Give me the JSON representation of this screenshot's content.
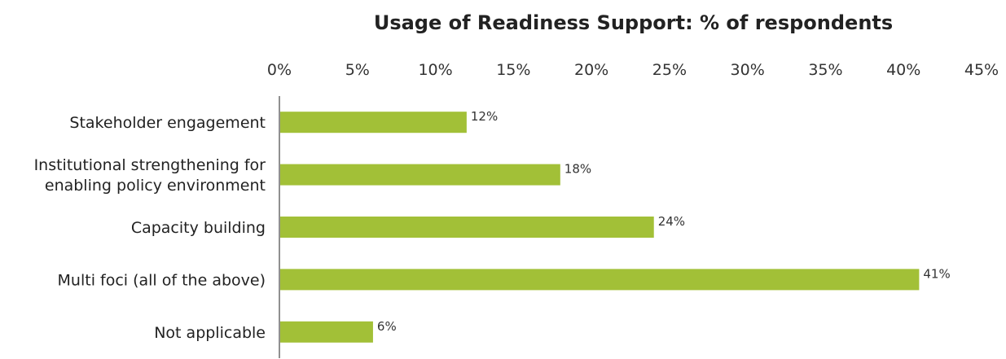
{
  "chart_data": {
    "type": "bar",
    "orientation": "horizontal",
    "title": "Usage of Readiness Support: % of respondents",
    "categories": [
      [
        "Stakeholder engagement"
      ],
      [
        "Institutional strengthening for",
        "enabling policy environment"
      ],
      [
        "Capacity building"
      ],
      [
        "Multi foci (all of the above)"
      ],
      [
        "Not applicable"
      ]
    ],
    "values": [
      12,
      18,
      24,
      41,
      6
    ],
    "data_labels": [
      "12%",
      "18%",
      "24%",
      "41%",
      "6%"
    ],
    "xlim": [
      0,
      45
    ],
    "x_ticks": [
      "0%",
      "5%",
      "10%",
      "15%",
      "20%",
      "25%",
      "30%",
      "35%",
      "40%",
      "45%"
    ],
    "x_tick_values": [
      0,
      5,
      10,
      15,
      20,
      25,
      30,
      35,
      40,
      45
    ],
    "x_axis_position": "top",
    "grid": false,
    "legend": "none",
    "bar_color": "#a2c037",
    "axis_color": "#222222"
  }
}
